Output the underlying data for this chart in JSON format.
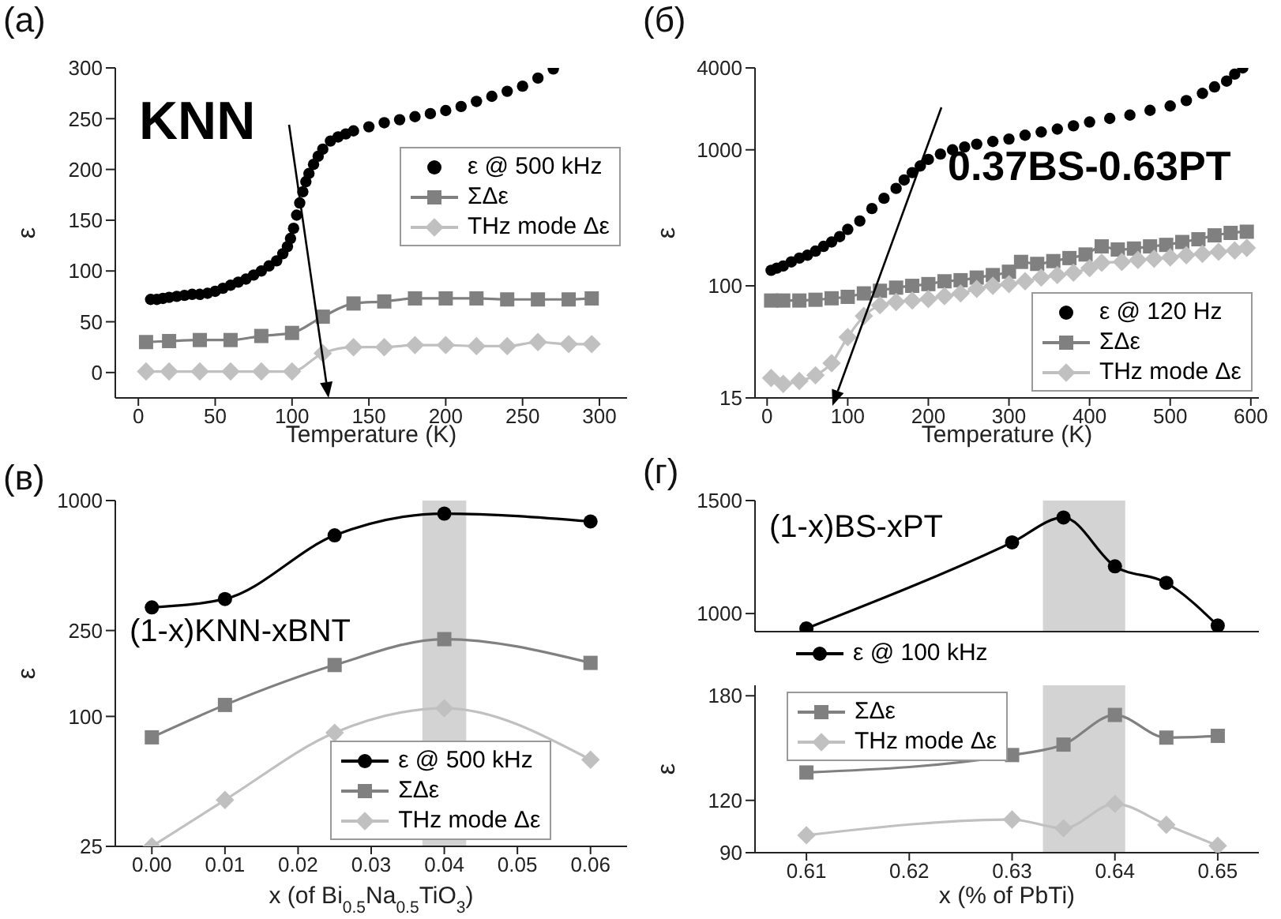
{
  "chart_data": [
    {
      "type": "line",
      "title": "(a)",
      "xlabel": "Temperature (K)",
      "ylabel": "ε",
      "xlim": [
        -15,
        318
      ],
      "xticks": [
        0,
        50,
        100,
        150,
        200,
        250,
        300
      ],
      "ylim": [
        -25,
        300
      ],
      "yticks": [
        0,
        50,
        100,
        150,
        200,
        250,
        300
      ],
      "legend": "right",
      "annotations": [
        "KNN"
      ],
      "series": [
        {
          "name": "ε @ 500 kHz",
          "type": "scatter",
          "marker": "circle",
          "color": "#000000",
          "x": [
            8,
            12,
            16,
            20,
            25,
            30,
            35,
            40,
            45,
            50,
            55,
            60,
            65,
            70,
            75,
            80,
            85,
            90,
            94,
            97,
            99,
            101,
            103,
            105,
            107,
            109,
            111,
            114,
            117,
            120,
            125,
            130,
            135,
            140,
            150,
            160,
            170,
            180,
            190,
            200,
            210,
            220,
            230,
            240,
            250,
            260,
            270
          ],
          "values": [
            72,
            72,
            73,
            74,
            75,
            76,
            77,
            77,
            78,
            80,
            83,
            86,
            89,
            92,
            96,
            100,
            105,
            110,
            117,
            124,
            132,
            142,
            155,
            167,
            178,
            188,
            196,
            205,
            213,
            220,
            228,
            232,
            235,
            238,
            242,
            246,
            249,
            252,
            255,
            258,
            262,
            267,
            272,
            277,
            282,
            290,
            299
          ]
        },
        {
          "name": "ΣΔε",
          "type": "line",
          "marker": "square",
          "color": "#808080",
          "x": [
            5,
            20,
            40,
            60,
            80,
            100,
            120,
            140,
            160,
            180,
            200,
            220,
            240,
            260,
            280,
            295
          ],
          "values": [
            30,
            31,
            32,
            32,
            36,
            39,
            55,
            68,
            70,
            73,
            73,
            73,
            72,
            72,
            72,
            73
          ]
        },
        {
          "name": "THz mode Δε",
          "type": "line",
          "marker": "diamond",
          "color": "#c0c0c0",
          "x": [
            5,
            20,
            40,
            60,
            80,
            100,
            120,
            140,
            160,
            180,
            200,
            220,
            240,
            260,
            280,
            295
          ],
          "values": [
            1,
            1,
            1,
            1,
            1,
            1,
            19,
            25,
            25,
            27,
            27,
            26,
            26,
            30,
            28,
            28
          ]
        }
      ]
    },
    {
      "type": "line",
      "title": "(б)",
      "xlabel": "Temperature (K)",
      "ylabel": "ε",
      "log": true,
      "xlim": [
        -15,
        610
      ],
      "xticks": [
        0,
        100,
        200,
        300,
        400,
        500,
        600
      ],
      "ylim": [
        15,
        4000
      ],
      "yticks": [
        15,
        100,
        1000,
        4000
      ],
      "legend": "bottom right",
      "annotations": [
        "0.37BS-0.63PT"
      ],
      "series": [
        {
          "name": "ε @ 120 Hz",
          "type": "scatter",
          "marker": "circle",
          "color": "#000000",
          "x": [
            5,
            12,
            20,
            30,
            40,
            50,
            60,
            70,
            80,
            90,
            100,
            115,
            130,
            145,
            160,
            170,
            180,
            190,
            200,
            215,
            230,
            245,
            260,
            280,
            300,
            320,
            340,
            360,
            380,
            400,
            425,
            450,
            475,
            500,
            520,
            540,
            555,
            570,
            580,
            590
          ],
          "values": [
            130,
            135,
            140,
            150,
            160,
            168,
            180,
            195,
            210,
            230,
            260,
            300,
            370,
            440,
            520,
            600,
            680,
            760,
            850,
            930,
            1000,
            1050,
            1100,
            1150,
            1200,
            1280,
            1350,
            1420,
            1500,
            1600,
            1700,
            1800,
            1950,
            2100,
            2300,
            2600,
            2900,
            3200,
            3600,
            4000
          ]
        },
        {
          "name": "ΣΔε",
          "type": "line",
          "marker": "square",
          "color": "#808080",
          "x": [
            5,
            20,
            40,
            60,
            80,
            100,
            120,
            140,
            160,
            180,
            200,
            220,
            240,
            260,
            280,
            300,
            315,
            335,
            355,
            375,
            395,
            415,
            435,
            455,
            475,
            495,
            515,
            535,
            555,
            575,
            595
          ],
          "values": [
            78,
            78,
            78,
            79,
            81,
            83,
            88,
            92,
            97,
            100,
            103,
            108,
            110,
            115,
            120,
            127,
            150,
            145,
            152,
            160,
            170,
            195,
            185,
            188,
            195,
            200,
            210,
            220,
            235,
            245,
            250
          ]
        },
        {
          "name": "THz mode Δε",
          "type": "line",
          "marker": "diamond",
          "color": "#c0c0c0",
          "x": [
            5,
            20,
            40,
            60,
            80,
            100,
            120,
            140,
            160,
            180,
            200,
            220,
            240,
            260,
            280,
            300,
            320,
            340,
            360,
            380,
            400,
            415,
            440,
            460,
            480,
            500,
            520,
            540,
            560,
            580,
            595
          ],
          "values": [
            21,
            19,
            20,
            22,
            27,
            42,
            60,
            72,
            76,
            78,
            80,
            84,
            88,
            95,
            100,
            103,
            108,
            115,
            120,
            125,
            135,
            148,
            150,
            155,
            158,
            162,
            168,
            172,
            178,
            182,
            190
          ]
        }
      ]
    },
    {
      "type": "line",
      "title": "(в)",
      "xlabel": "x (of Bi$_{0.5}$Na$_{0.5}$TiO$_{3}$)",
      "ylabel": "ε",
      "log": true,
      "xlim": [
        -0.005,
        0.065
      ],
      "xticks": [
        {
          "value": 0,
          "label": "0.00"
        },
        0.01,
        0.02,
        0.03,
        0.04,
        0.05,
        0.06
      ],
      "ylim": [
        25,
        1000
      ],
      "yticks": [
        25,
        100,
        250,
        1000
      ],
      "legend": "bottom",
      "annotations": [
        "(1-x)KNN-xBNT"
      ],
      "bands": [
        {
          "axis": "x",
          "from": 0.037,
          "to": 0.043,
          "color": "#d3d3d3"
        }
      ],
      "series": [
        {
          "name": "ε @ 500 kHz",
          "type": "line",
          "marker": "circle",
          "color": "#000000",
          "x": [
            0,
            0.01,
            0.025,
            0.04,
            0.06
          ],
          "values": [
            320,
            350,
            690,
            870,
            800
          ]
        },
        {
          "name": "ΣΔε",
          "type": "line",
          "marker": "square",
          "color": "#808080",
          "x": [
            0,
            0.01,
            0.025,
            0.04,
            0.06
          ],
          "values": [
            80,
            113,
            173,
            228,
            177
          ]
        },
        {
          "name": "THz mode Δε",
          "type": "line",
          "marker": "diamond",
          "color": "#c0c0c0",
          "x": [
            0,
            0.01,
            0.025,
            0.04,
            0.06
          ],
          "values": [
            25,
            41,
            84,
            109,
            63
          ]
        }
      ]
    },
    {
      "type": "line",
      "title": "(г)",
      "tick_labels": "y",
      "xlim": [
        0.605,
        0.654
      ],
      "ylim": [
        920,
        1500
      ],
      "yticks": [
        1000,
        1500
      ],
      "legend": "bottom left",
      "annotations": [
        "(1-x)BS-xPT"
      ],
      "bands": [
        {
          "axis": "x",
          "from": 0.633,
          "to": 0.641,
          "color": "#d3d3d3"
        }
      ],
      "series": [
        {
          "name": "ε @ 100 kHz",
          "type": "line",
          "marker": "circle",
          "color": "#000000",
          "x": [
            0.61,
            0.63,
            0.635,
            0.64,
            0.645,
            0.65
          ],
          "values": [
            934,
            1315,
            1425,
            1209,
            1136,
            947
          ]
        }
      ]
    },
    {
      "type": "line",
      "xlabel": "x (% of PbTi)",
      "ylabel": "ε",
      "xlim": [
        0.605,
        0.654
      ],
      "xticks": [
        0.61,
        0.62,
        0.63,
        0.64,
        0.65
      ],
      "ylim": [
        90,
        186
      ],
      "yticks": [
        90,
        120,
        180
      ],
      "legend": "top left",
      "bands": [
        {
          "axis": "x",
          "from": 0.633,
          "to": 0.641,
          "color": "#d3d3d3"
        }
      ],
      "series": [
        {
          "name": "ΣΔε",
          "type": "line",
          "marker": "square",
          "color": "#808080",
          "x": [
            0.61,
            0.63,
            0.635,
            0.64,
            0.645,
            0.65
          ],
          "values": [
            136,
            146,
            152,
            169,
            156,
            157
          ]
        },
        {
          "name": "THz mode Δε",
          "type": "line",
          "marker": "diamond",
          "color": "#c0c0c0",
          "x": [
            0.61,
            0.63,
            0.635,
            0.64,
            0.645,
            0.65
          ],
          "values": [
            100,
            109,
            104,
            118,
            106,
            94
          ]
        }
      ]
    }
  ]
}
